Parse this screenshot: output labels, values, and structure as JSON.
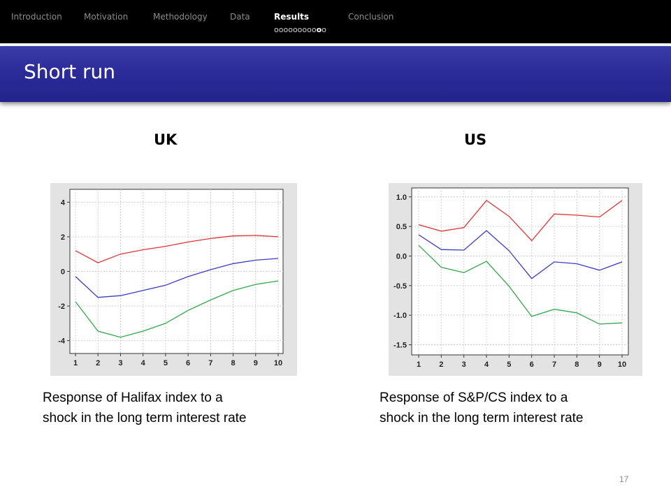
{
  "nav": {
    "items": [
      "Introduction",
      "Motivation",
      "Methodology",
      "Data",
      "Results",
      "Conclusion"
    ],
    "active": "Results",
    "progress": {
      "total": 11,
      "current": 10
    }
  },
  "slide": {
    "title": "Short run",
    "page_number": "17"
  },
  "panels": {
    "left": {
      "country": "UK",
      "caption": "Response of Halifax index to a\nshock in the long term interest rate"
    },
    "right": {
      "country": "US",
      "caption": "Response of S&P/CS index to a\nshock in the long term interest rate"
    }
  },
  "colors": {
    "upper_band": "#e03535",
    "response": "#3a3ac8",
    "lower_band": "#33a84a",
    "accent": "#2b2b9a"
  },
  "chart_data": [
    {
      "type": "line",
      "x": [
        1,
        2,
        3,
        4,
        5,
        6,
        7,
        8,
        9,
        10
      ],
      "ylim": [
        -4.5,
        4.5
      ],
      "yticks": [
        4,
        2,
        0,
        -2,
        -4
      ],
      "ytick_labels": [
        "4",
        "2",
        "0",
        "-2",
        "-4"
      ],
      "xtick_labels": [
        "1",
        "2",
        "3",
        "4",
        "5",
        "6",
        "7",
        "8",
        "9",
        "10"
      ],
      "grid": true,
      "series": [
        {
          "color": "#e03535",
          "values": [
            1.2,
            0.5,
            1.0,
            1.25,
            1.45,
            1.7,
            1.9,
            2.05,
            2.08,
            2.0
          ]
        },
        {
          "color": "#3a3ac8",
          "values": [
            -0.3,
            -1.5,
            -1.4,
            -1.1,
            -0.8,
            -0.3,
            0.1,
            0.45,
            0.65,
            0.75
          ]
        },
        {
          "color": "#33a84a",
          "values": [
            -1.75,
            -3.45,
            -3.8,
            -3.45,
            -3.0,
            -2.25,
            -1.65,
            -1.1,
            -0.75,
            -0.55
          ]
        }
      ]
    },
    {
      "type": "line",
      "x": [
        1,
        2,
        3,
        4,
        5,
        6,
        7,
        8,
        9,
        10
      ],
      "ylim": [
        -1.6,
        1.08
      ],
      "yticks": [
        1.0,
        0.5,
        0.0,
        -0.5,
        -1.0,
        -1.5
      ],
      "ytick_labels": [
        "1.0",
        "0.5",
        "0.0",
        "-0.5",
        "-1.0",
        "-1.5"
      ],
      "xtick_labels": [
        "1",
        "2",
        "3",
        "4",
        "5",
        "6",
        "7",
        "8",
        "9",
        "10"
      ],
      "grid": true,
      "series": [
        {
          "color": "#e03535",
          "values": [
            0.53,
            0.42,
            0.48,
            0.94,
            0.67,
            0.26,
            0.71,
            0.69,
            0.66,
            0.94
          ]
        },
        {
          "color": "#3a3ac8",
          "values": [
            0.36,
            0.11,
            0.1,
            0.43,
            0.09,
            -0.38,
            -0.1,
            -0.13,
            -0.24,
            -0.1
          ]
        },
        {
          "color": "#33a84a",
          "values": [
            0.18,
            -0.19,
            -0.28,
            -0.09,
            -0.51,
            -1.02,
            -0.9,
            -0.96,
            -1.15,
            -1.13
          ]
        }
      ]
    }
  ]
}
